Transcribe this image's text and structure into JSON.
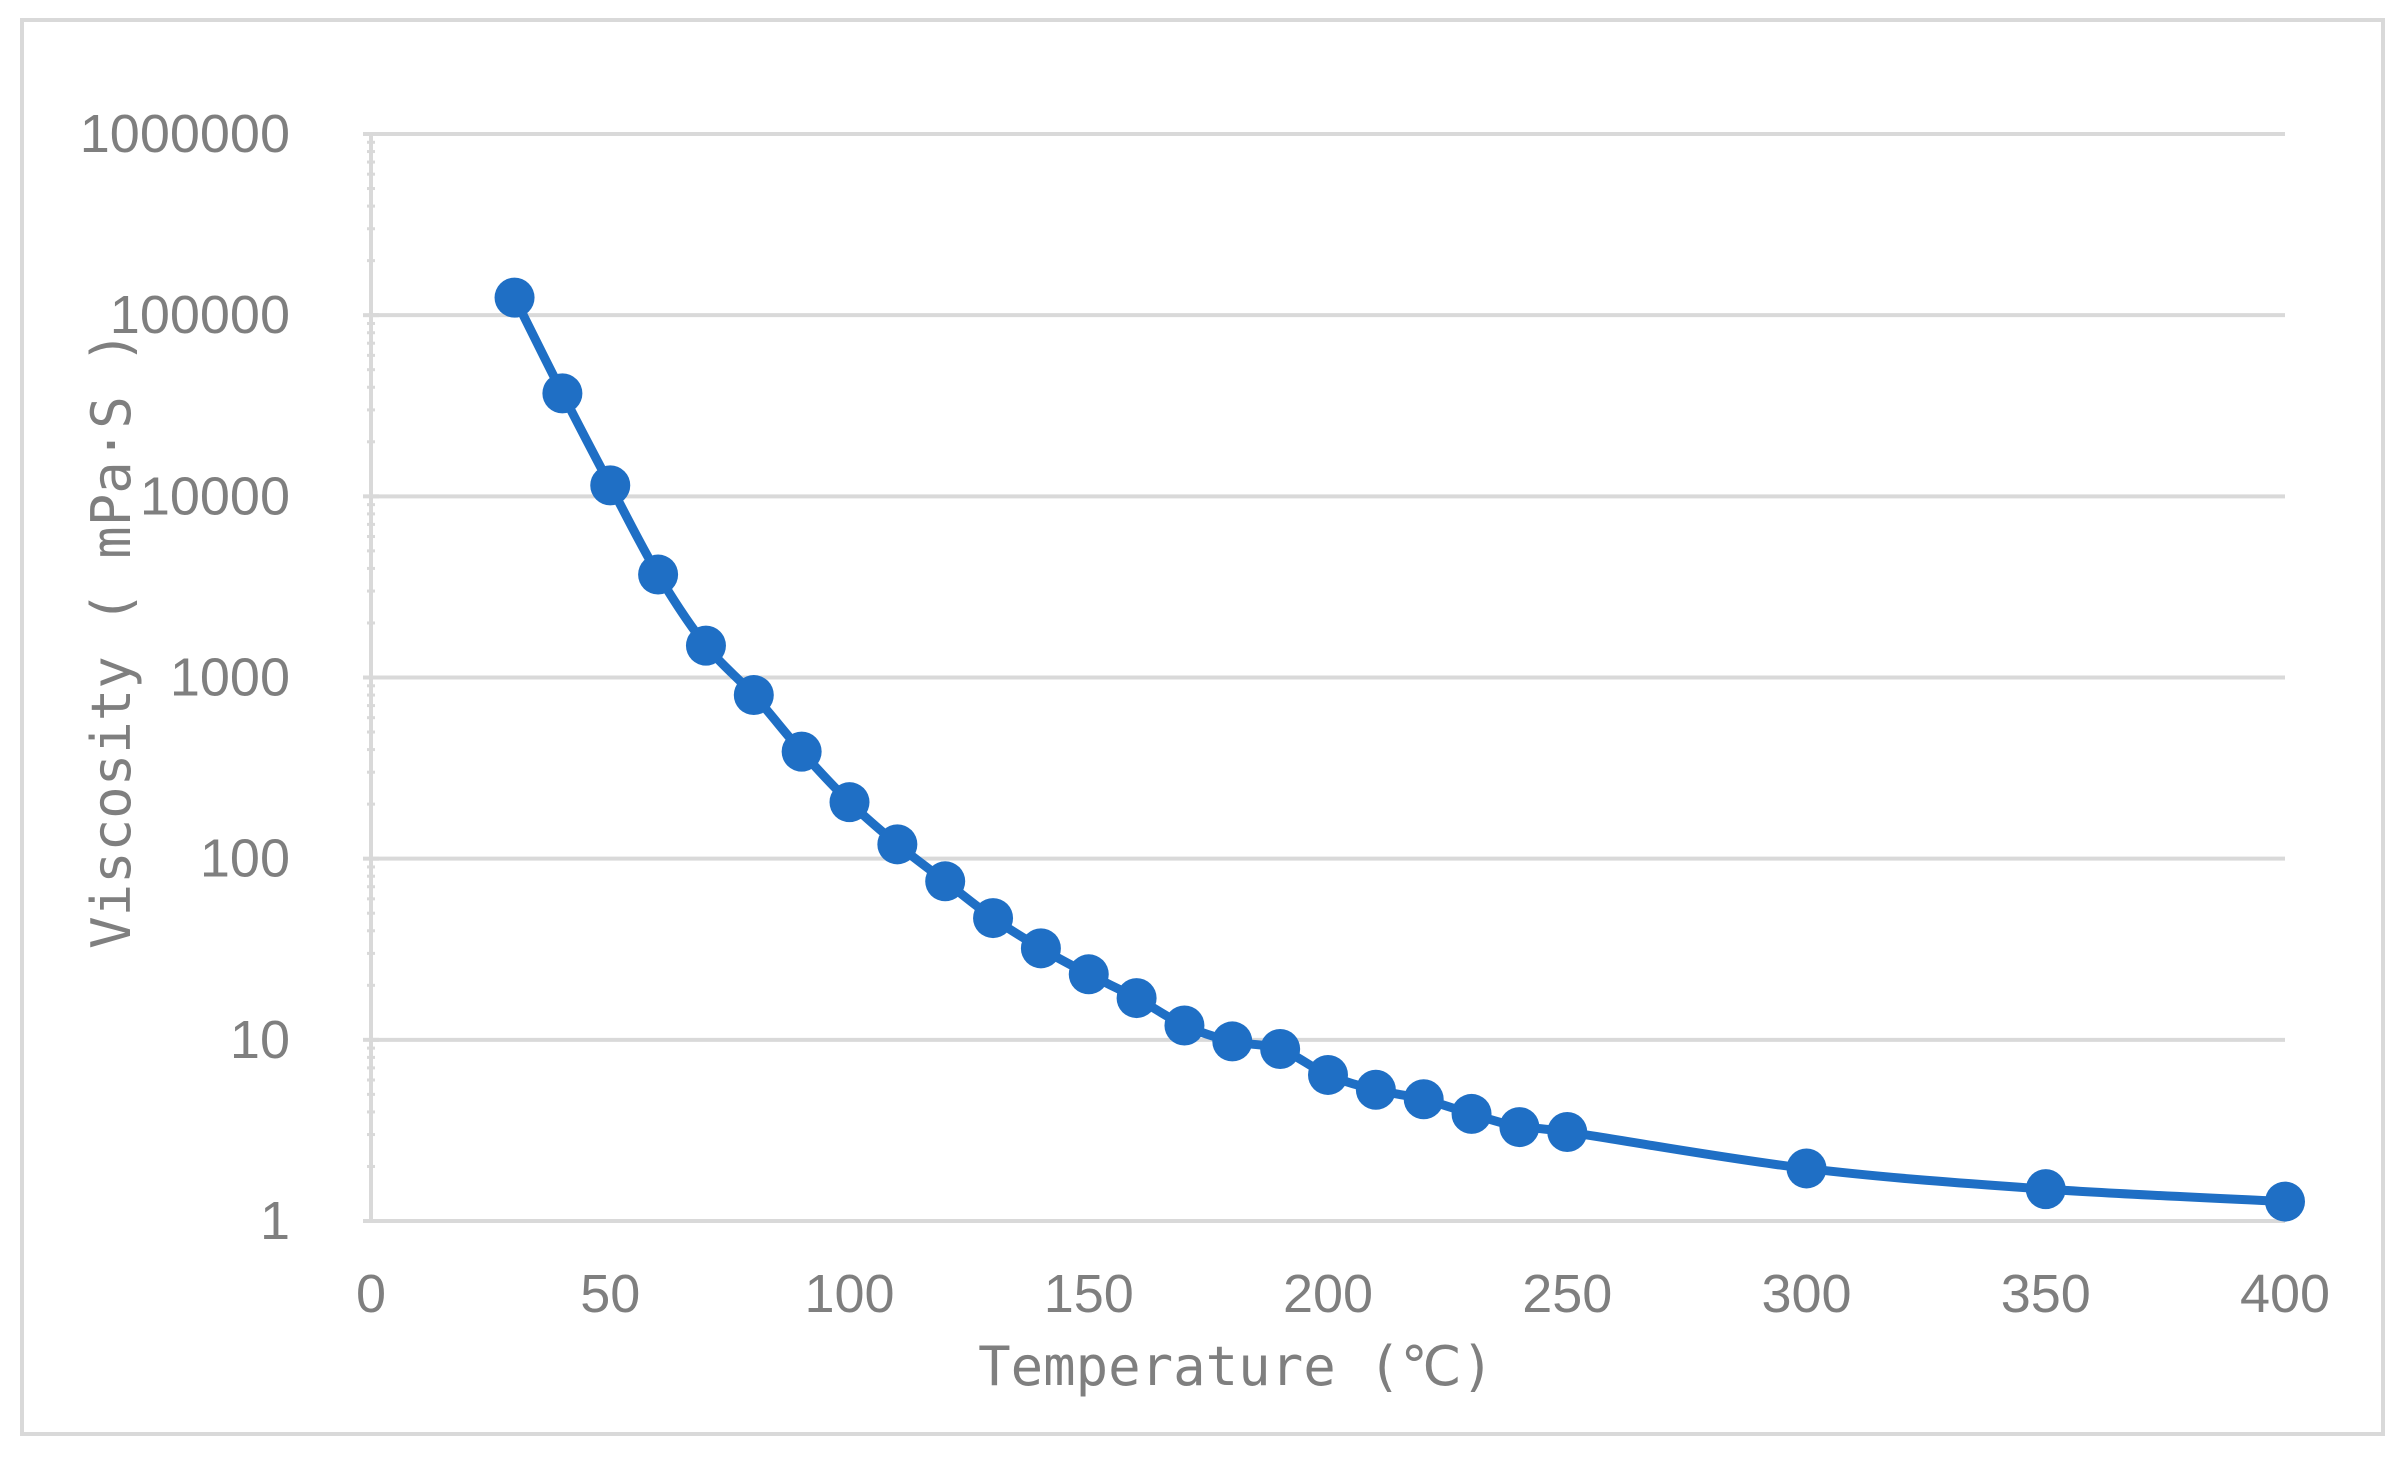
{
  "chart_data": {
    "type": "line",
    "title": "",
    "xlabel": "Temperature (℃)",
    "ylabel": "Viscosity ( mPa·S )",
    "xlim": [
      0,
      400
    ],
    "ylim": [
      1,
      1000000
    ],
    "yscale": "log",
    "grid": true,
    "legend": "none",
    "x_ticks": [
      0,
      50,
      100,
      150,
      200,
      250,
      300,
      350,
      400
    ],
    "y_ticks": [
      1,
      10,
      100,
      1000,
      10000,
      100000,
      1000000
    ],
    "x_tick_labels": [
      "0",
      "50",
      "100",
      "150",
      "200",
      "250",
      "300",
      "350",
      "400"
    ],
    "y_tick_labels": [
      "1",
      "10",
      "100",
      "1000",
      "10000",
      "100000",
      "1000000"
    ],
    "series": [
      {
        "color": "#1f6fc5",
        "marker": "circle",
        "line": "smooth",
        "x": [
          30,
          40,
          50,
          60,
          70,
          80,
          90,
          100,
          110,
          120,
          130,
          140,
          150,
          160,
          170,
          180,
          190,
          200,
          210,
          220,
          230,
          240,
          250,
          300,
          350,
          400
        ],
        "y": [
          125000,
          37000,
          11500,
          3700,
          1500,
          800,
          390,
          205,
          120,
          75,
          47,
          32,
          23,
          17,
          12,
          9.8,
          8.9,
          6.4,
          5.3,
          4.7,
          3.9,
          3.3,
          3.1,
          1.95,
          1.5,
          1.28
        ]
      }
    ]
  }
}
